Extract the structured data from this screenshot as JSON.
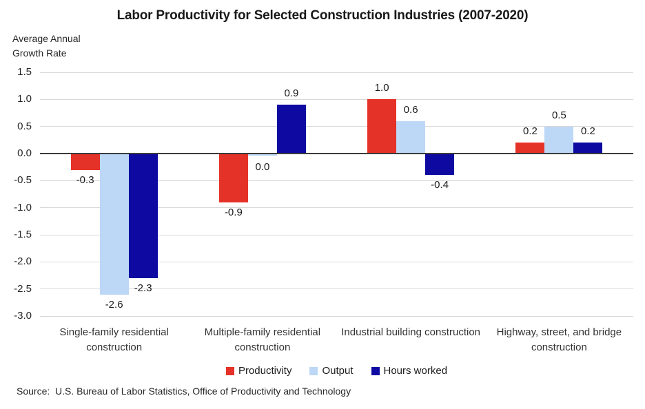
{
  "y_axis_title_lines": [
    "Average Annual",
    "Growth Rate"
  ],
  "source_note": "Source:  U.S. Bureau of Labor Statistics, Office of Productivity and Technology",
  "colors": {
    "grid": "#d9d9d9",
    "zero_line": "#3b3b3b",
    "productivity_red": "#e53228",
    "output_light_blue": "#bdd7f6",
    "hours_navy": "#0d09a1"
  },
  "chart_data": {
    "type": "bar",
    "title": "Labor Productivity for Selected Construction Industries (2007-2020)",
    "ylabel": "Average Annual Growth Rate",
    "categories": [
      "Single-family residential construction",
      "Multiple-family residential construction",
      "Industrial building construction",
      "Highway, street, and bridge construction"
    ],
    "series": [
      {
        "name": "Productivity",
        "color": "#e53228",
        "values": [
          -0.3,
          -0.9,
          1.0,
          0.2
        ]
      },
      {
        "name": "Output",
        "color": "#bdd7f6",
        "values": [
          -2.6,
          0.0,
          0.6,
          0.5
        ]
      },
      {
        "name": "Hours worked",
        "color": "#0d09a1",
        "values": [
          -2.3,
          0.9,
          -0.4,
          0.2
        ]
      }
    ],
    "value_labels": true,
    "ylim": [
      -3.0,
      1.5
    ],
    "ytick_step": 0.5,
    "grid": true,
    "legend_position": "bottom"
  }
}
